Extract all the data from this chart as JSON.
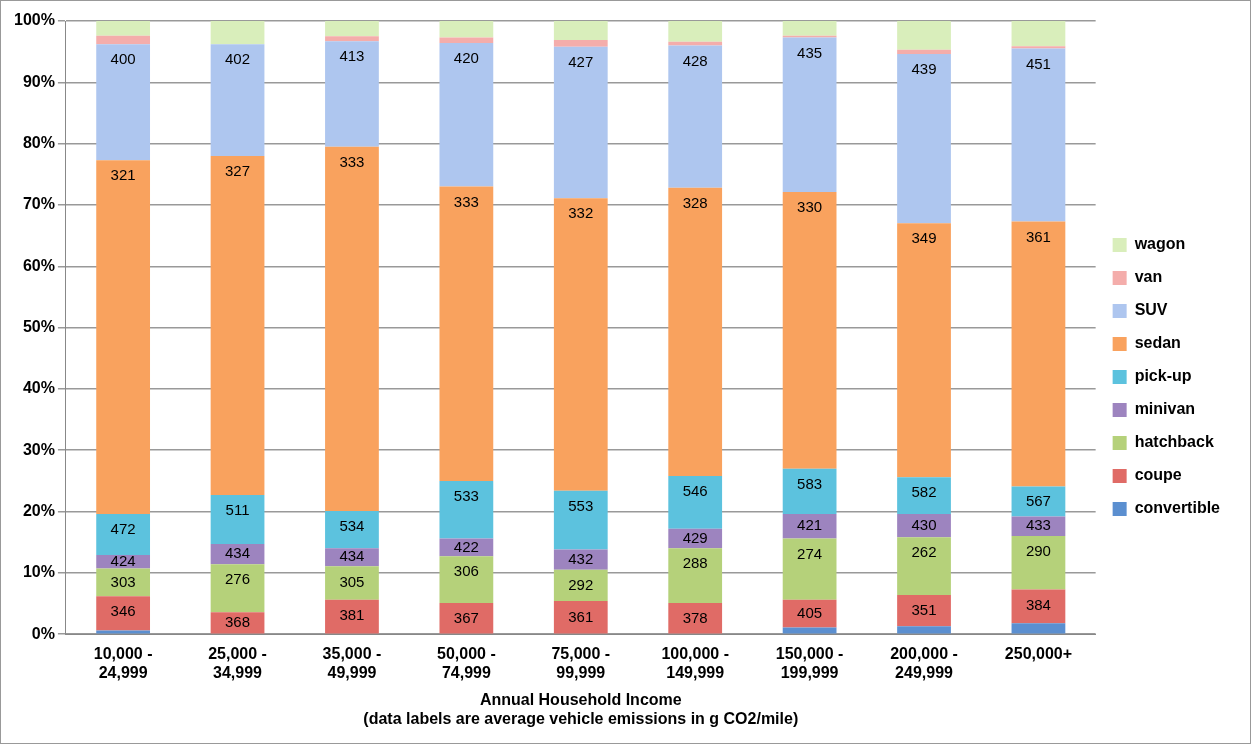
{
  "chart_data": {
    "type": "bar",
    "stacked": true,
    "xlabel": "Annual Household Income\n(data labels are average vehicle emissions in g CO2/mile)",
    "categories": [
      "10,000 -\n24,999",
      "25,000 -\n34,999",
      "35,000 -\n49,999",
      "50,000 -\n74,999",
      "75,000 -\n99,999",
      "100,000 -\n149,999",
      "150,000 -\n199,999",
      "200,000 -\n249,999",
      "250,000+"
    ],
    "ylim": [
      0,
      100
    ],
    "yticks": [
      {
        "value": 0,
        "label": "0%"
      },
      {
        "value": 10,
        "label": "10%"
      },
      {
        "value": 20,
        "label": "20%"
      },
      {
        "value": 30,
        "label": "30%"
      },
      {
        "value": 40,
        "label": "40%"
      },
      {
        "value": 50,
        "label": "50%"
      },
      {
        "value": 60,
        "label": "60%"
      },
      {
        "value": 70,
        "label": "70%"
      },
      {
        "value": 80,
        "label": "80%"
      },
      {
        "value": 90,
        "label": "90%"
      },
      {
        "value": 100,
        "label": "100%"
      }
    ],
    "grid": "y",
    "legend": "right",
    "series": [
      {
        "name": "convertible",
        "color": "#5b8fd0",
        "values": [
          0.6,
          0,
          null,
          null,
          null,
          null,
          1.1,
          1.3,
          1.8
        ]
      },
      {
        "name": "coupe",
        "color": "#e06b66",
        "values": [
          5.6,
          3.6,
          5.6,
          5.1,
          5.4,
          5.1,
          4.5,
          5.1,
          5.5
        ]
      },
      {
        "name": "hatchback",
        "color": "#b5d17a",
        "values": [
          4.5,
          7.8,
          5.5,
          7.6,
          5.1,
          8.9,
          10.0,
          9.4,
          8.7
        ]
      },
      {
        "name": "minivan",
        "color": "#9d84bf",
        "values": [
          2.2,
          3.3,
          2.9,
          2.9,
          3.3,
          3.2,
          4.0,
          3.8,
          3.2
        ]
      },
      {
        "name": "pick-up",
        "color": "#5cc2de",
        "values": [
          6.7,
          8.0,
          6.1,
          9.4,
          9.6,
          8.6,
          7.4,
          6.0,
          4.9
        ]
      },
      {
        "name": "sedan",
        "color": "#f9a25e",
        "values": [
          57.7,
          55.3,
          59.4,
          48.0,
          47.7,
          47.0,
          45.1,
          41.4,
          43.2
        ]
      },
      {
        "name": "SUV",
        "color": "#aec6ef",
        "values": [
          18.9,
          18.2,
          17.2,
          23.4,
          24.7,
          23.2,
          25.2,
          27.6,
          28.2
        ]
      },
      {
        "name": "van",
        "color": "#f4adab",
        "values": [
          1.4,
          0,
          0.8,
          0.9,
          1.1,
          0.6,
          0.3,
          0.7,
          0.4
        ]
      },
      {
        "name": "wagon",
        "color": "#d9eebb",
        "values": [
          2.4,
          3.8,
          2.5,
          2.7,
          3.1,
          3.4,
          2.4,
          4.7,
          4.1
        ]
      }
    ],
    "annotations": [
      {
        "text": "346",
        "x": "10,000 -\n24,999",
        "y": 6.2
      },
      {
        "text": "303",
        "x": "10,000 -\n24,999",
        "y": 10.7
      },
      {
        "text": "424",
        "x": "10,000 -\n24,999",
        "y": 12.9
      },
      {
        "text": "472",
        "x": "10,000 -\n24,999",
        "y": 19.6
      },
      {
        "text": "321",
        "x": "10,000 -\n24,999",
        "y": 77.3
      },
      {
        "text": "400",
        "x": "10,000 -\n24,999",
        "y": 96.2
      },
      {
        "text": "368",
        "x": "25,000 -\n34,999",
        "y": 3.6
      },
      {
        "text": "276",
        "x": "25,000 -\n34,999",
        "y": 11.4
      },
      {
        "text": "434",
        "x": "25,000 -\n34,999",
        "y": 14.7
      },
      {
        "text": "511",
        "x": "25,000 -\n34,999",
        "y": 22.7
      },
      {
        "text": "327",
        "x": "25,000 -\n34,999",
        "y": 78.0
      },
      {
        "text": "402",
        "x": "25,000 -\n34,999",
        "y": 96.2
      },
      {
        "text": "381",
        "x": "35,000 -\n49,999",
        "y": 5.6
      },
      {
        "text": "305",
        "x": "35,000 -\n49,999",
        "y": 11.1
      },
      {
        "text": "434",
        "x": "35,000 -\n49,999",
        "y": 14.0
      },
      {
        "text": "534",
        "x": "35,000 -\n49,999",
        "y": 20.1
      },
      {
        "text": "333",
        "x": "35,000 -\n49,999",
        "y": 79.5
      },
      {
        "text": "413",
        "x": "35,000 -\n49,999",
        "y": 96.7
      },
      {
        "text": "367",
        "x": "50,000 -\n74,999",
        "y": 5.1
      },
      {
        "text": "306",
        "x": "50,000 -\n74,999",
        "y": 12.7
      },
      {
        "text": "422",
        "x": "50,000 -\n74,999",
        "y": 15.6
      },
      {
        "text": "533",
        "x": "50,000 -\n74,999",
        "y": 25.0
      },
      {
        "text": "333",
        "x": "50,000 -\n74,999",
        "y": 73.0
      },
      {
        "text": "420",
        "x": "50,000 -\n74,999",
        "y": 96.4
      },
      {
        "text": "361",
        "x": "75,000 -\n99,999",
        "y": 5.4
      },
      {
        "text": "292",
        "x": "75,000 -\n99,999",
        "y": 10.5
      },
      {
        "text": "432",
        "x": "75,000 -\n99,999",
        "y": 13.8
      },
      {
        "text": "553",
        "x": "75,000 -\n99,999",
        "y": 23.4
      },
      {
        "text": "332",
        "x": "75,000 -\n99,999",
        "y": 71.1
      },
      {
        "text": "427",
        "x": "75,000 -\n99,999",
        "y": 95.8
      },
      {
        "text": "378",
        "x": "100,000 -\n149,999",
        "y": 5.1
      },
      {
        "text": "288",
        "x": "100,000 -\n149,999",
        "y": 14.0
      },
      {
        "text": "429",
        "x": "100,000 -\n149,999",
        "y": 17.2
      },
      {
        "text": "546",
        "x": "100,000 -\n149,999",
        "y": 25.8
      },
      {
        "text": "328",
        "x": "100,000 -\n149,999",
        "y": 72.8
      },
      {
        "text": "428",
        "x": "100,000 -\n149,999",
        "y": 96.0
      },
      {
        "text": "405",
        "x": "150,000 -\n199,999",
        "y": 5.6
      },
      {
        "text": "274",
        "x": "150,000 -\n199,999",
        "y": 15.6
      },
      {
        "text": "421",
        "x": "150,000 -\n199,999",
        "y": 19.6
      },
      {
        "text": "583",
        "x": "150,000 -\n199,999",
        "y": 27.0
      },
      {
        "text": "330",
        "x": "150,000 -\n199,999",
        "y": 72.1
      },
      {
        "text": "435",
        "x": "150,000 -\n199,999",
        "y": 97.3
      },
      {
        "text": "351",
        "x": "200,000 -\n249,999",
        "y": 6.4
      },
      {
        "text": "262",
        "x": "200,000 -\n249,999",
        "y": 15.8
      },
      {
        "text": "430",
        "x": "200,000 -\n249,999",
        "y": 19.6
      },
      {
        "text": "582",
        "x": "200,000 -\n249,999",
        "y": 25.6
      },
      {
        "text": "349",
        "x": "200,000 -\n249,999",
        "y": 67.0
      },
      {
        "text": "439",
        "x": "200,000 -\n249,999",
        "y": 94.6
      },
      {
        "text": "384",
        "x": "250,000+",
        "y": 7.3
      },
      {
        "text": "290",
        "x": "250,000+",
        "y": 16.0
      },
      {
        "text": "433",
        "x": "250,000+",
        "y": 19.2
      },
      {
        "text": "567",
        "x": "250,000+",
        "y": 24.1
      },
      {
        "text": "361",
        "x": "250,000+",
        "y": 67.3
      },
      {
        "text": "451",
        "x": "250,000+",
        "y": 95.5
      }
    ]
  }
}
